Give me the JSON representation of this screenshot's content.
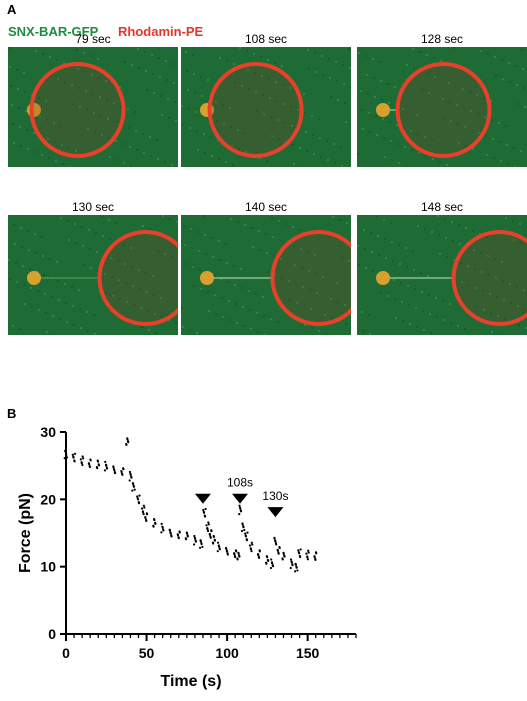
{
  "figure": {
    "panel_a": {
      "letter": "A",
      "channels": [
        {
          "name": "SNX-BAR-GFP",
          "color": "#1a8f3a"
        },
        {
          "name": "Rhodamin-PE",
          "color": "#e8352b"
        }
      ],
      "frames": [
        {
          "time": "79 sec",
          "vesicle_pos": 0.35,
          "tube": true
        },
        {
          "time": "108 sec",
          "vesicle_pos": 0.38,
          "tube": true
        },
        {
          "time": "128 sec",
          "vesicle_pos": 0.45,
          "tube": true
        },
        {
          "time": "130 sec",
          "vesicle_pos": 0.75,
          "tube": false
        },
        {
          "time": "140 sec",
          "vesicle_pos": 0.75,
          "tube": true
        },
        {
          "time": "148 sec",
          "vesicle_pos": 0.78,
          "tube": true
        }
      ],
      "colors": {
        "background": "#1f6b36",
        "membrane": "#e8402a",
        "bead": "#d9a030"
      }
    },
    "panel_b": {
      "letter": "B"
    }
  },
  "chart_data": {
    "type": "scatter",
    "xlabel": "Time (s)",
    "ylabel": "Force (pN)",
    "xlim": [
      0,
      180
    ],
    "ylim": [
      0,
      30
    ],
    "x_ticks": [
      0,
      50,
      100,
      150
    ],
    "y_ticks": [
      0,
      10,
      20,
      30
    ],
    "series": [
      {
        "values": [
          [
            0,
            26.8
          ],
          [
            5,
            26.2
          ],
          [
            10,
            25.8
          ],
          [
            15,
            25.5
          ],
          [
            20,
            25.2
          ],
          [
            25,
            25.0
          ],
          [
            30,
            24.6
          ],
          [
            35,
            24.2
          ],
          [
            38,
            28.5
          ],
          [
            40,
            23.5
          ],
          [
            42,
            22.0
          ],
          [
            45,
            20.0
          ],
          [
            48,
            18.5
          ],
          [
            50,
            17.5
          ],
          [
            55,
            16.5
          ],
          [
            60,
            15.8
          ],
          [
            65,
            15.2
          ],
          [
            70,
            14.8
          ],
          [
            75,
            14.5
          ],
          [
            80,
            14.0
          ],
          [
            84,
            13.5
          ],
          [
            86,
            18.0
          ],
          [
            88,
            16.0
          ],
          [
            90,
            15.0
          ],
          [
            92,
            14.0
          ],
          [
            95,
            13.0
          ],
          [
            100,
            12.5
          ],
          [
            105,
            12.0
          ],
          [
            107,
            11.5
          ],
          [
            108,
            18.5
          ],
          [
            110,
            16.0
          ],
          [
            112,
            14.5
          ],
          [
            115,
            13.0
          ],
          [
            120,
            12.0
          ],
          [
            125,
            11.0
          ],
          [
            128,
            10.5
          ],
          [
            130,
            14.0
          ],
          [
            132,
            12.5
          ],
          [
            135,
            11.5
          ],
          [
            140,
            10.5
          ],
          [
            143,
            10.0
          ],
          [
            145,
            12.0
          ],
          [
            150,
            11.8
          ],
          [
            155,
            11.7
          ]
        ]
      }
    ],
    "annotations": [
      {
        "x": 85,
        "y": 19.5,
        "label": ""
      },
      {
        "x": 108,
        "y": 19.5,
        "label": "108s"
      },
      {
        "x": 130,
        "y": 17.5,
        "label": "130s"
      }
    ]
  }
}
